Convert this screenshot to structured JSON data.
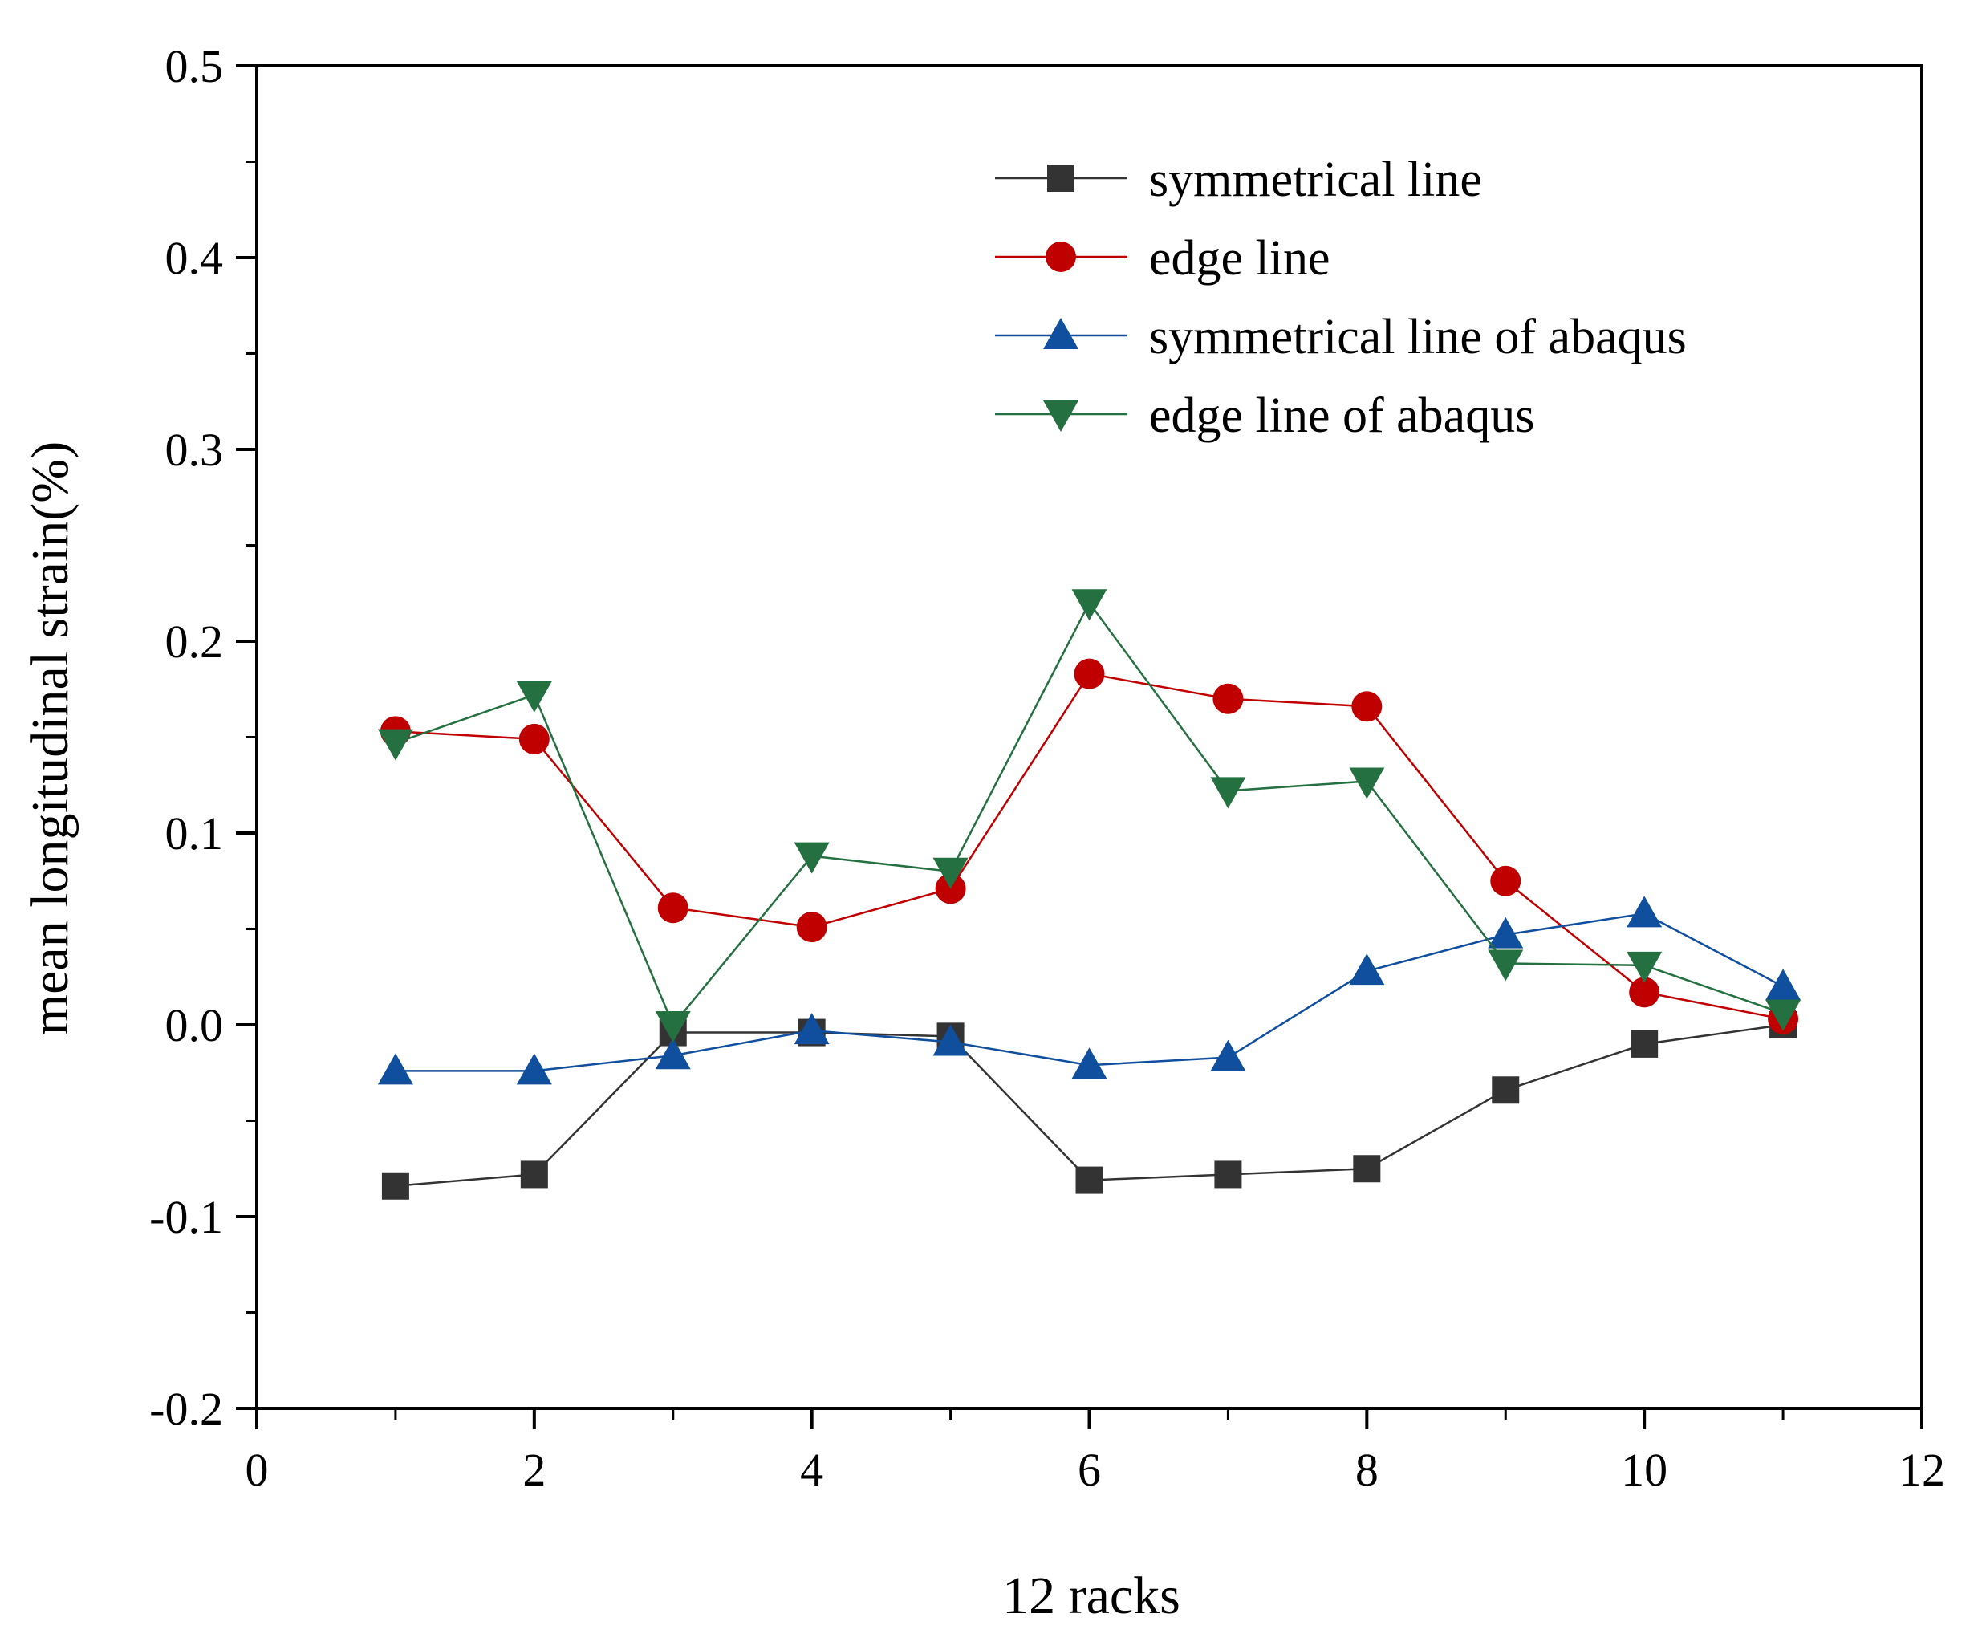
{
  "chart_data": {
    "type": "line",
    "title": "",
    "xlabel": "12 racks",
    "ylabel": "mean longitudinal strain(%)",
    "xlim": [
      0,
      12
    ],
    "ylim": [
      -0.2,
      0.5
    ],
    "xticks": [
      0,
      2,
      4,
      6,
      8,
      10,
      12
    ],
    "xtick_labels": [
      "0",
      "2",
      "4",
      "6",
      "8",
      "10",
      "12"
    ],
    "yticks": [
      -0.2,
      -0.1,
      0.0,
      0.1,
      0.2,
      0.3,
      0.4,
      0.5
    ],
    "ytick_labels": [
      "-0.2",
      "-0.1",
      "0.0",
      "0.1",
      "0.2",
      "0.3",
      "0.4",
      "0.5"
    ],
    "grid": false,
    "legend_position": "top-right",
    "x": [
      1,
      2,
      3,
      4,
      5,
      6,
      7,
      8,
      9,
      10,
      11
    ],
    "series": [
      {
        "name": "symmetrical line",
        "color": "#333333",
        "marker": "square",
        "values": [
          -0.084,
          -0.078,
          -0.004,
          -0.004,
          -0.006,
          -0.081,
          -0.078,
          -0.075,
          -0.034,
          -0.01,
          0.0
        ]
      },
      {
        "name": "edge line",
        "color": "#c00000",
        "marker": "circle",
        "values": [
          0.153,
          0.149,
          0.061,
          0.051,
          0.071,
          0.183,
          0.17,
          0.166,
          0.075,
          0.017,
          0.003
        ]
      },
      {
        "name": "symmetrical line of abaqus",
        "color": "#104e9e",
        "marker": "triangle-up",
        "values": [
          -0.024,
          -0.024,
          -0.016,
          -0.003,
          -0.009,
          -0.021,
          -0.017,
          0.028,
          0.047,
          0.058,
          0.02
        ]
      },
      {
        "name": "edge line of abaqus",
        "color": "#247040",
        "marker": "triangle-down",
        "values": [
          0.147,
          0.172,
          0.0,
          0.088,
          0.08,
          0.22,
          0.122,
          0.127,
          0.032,
          0.031,
          0.006
        ]
      }
    ]
  }
}
